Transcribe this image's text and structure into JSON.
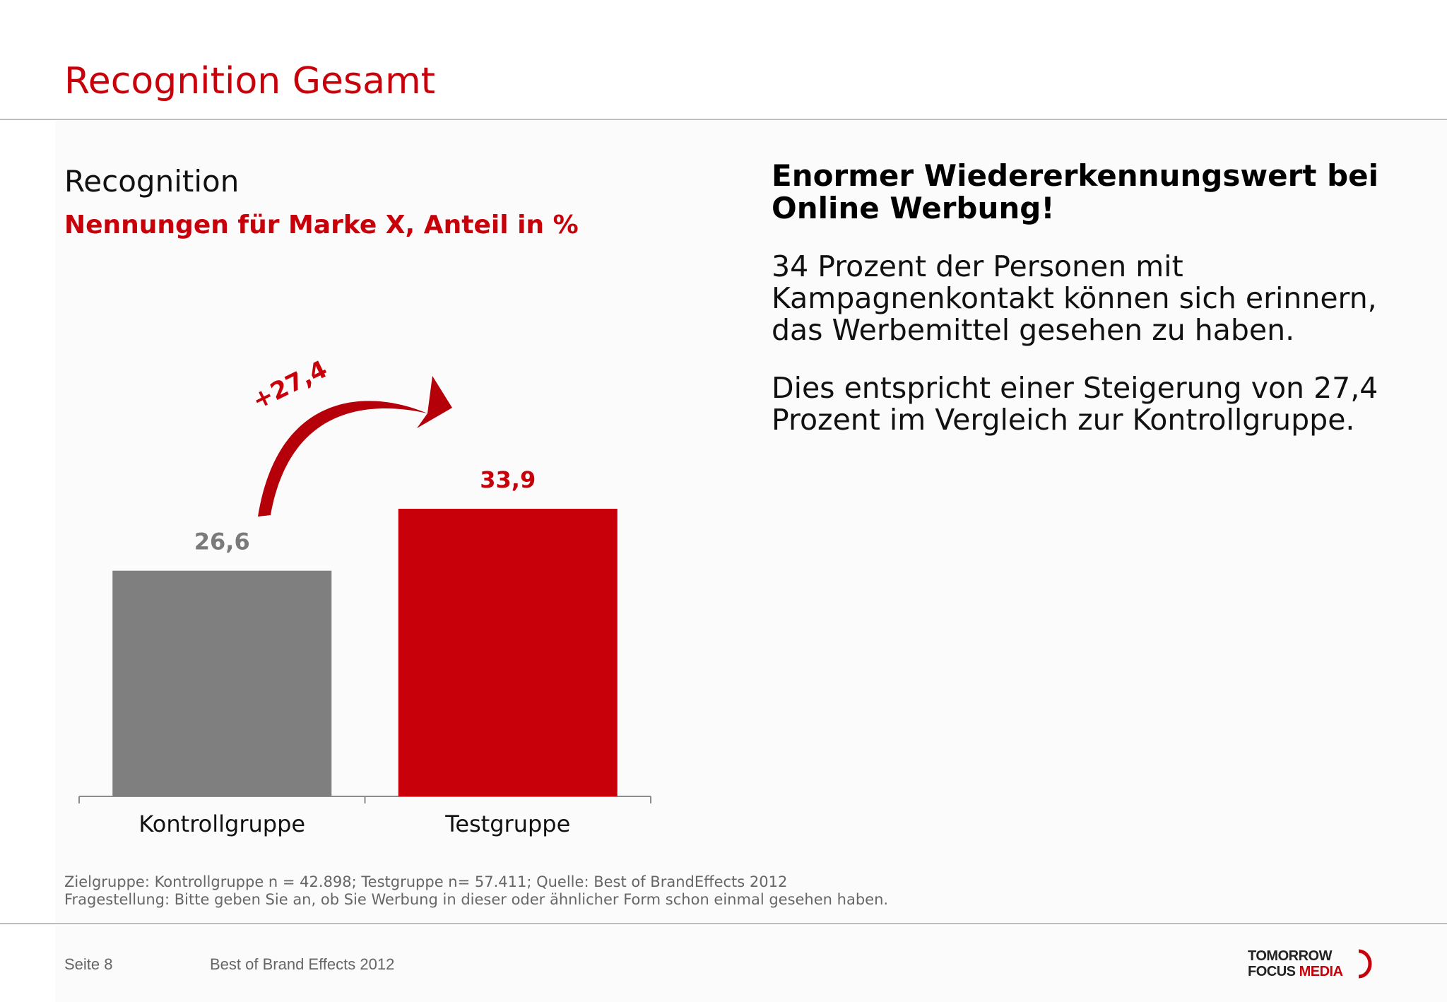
{
  "slide": {
    "title": "Recognition Gesamt",
    "page_label": "Seite 8",
    "event_label": "Best of Brand Effects 2012"
  },
  "chart_heading": "Recognition",
  "chart_subheading": "Nennungen für Marke X, Anteil in %",
  "chart_data": {
    "type": "bar",
    "title": "Recognition",
    "subtitle": "Nennungen für Marke X, Anteil in %",
    "categories": [
      "Kontrollgruppe",
      "Testgruppe"
    ],
    "values": [
      26.6,
      33.9
    ],
    "value_labels": [
      "26,6",
      "33,9"
    ],
    "colors": [
      "#807f80",
      "#c8000a"
    ],
    "annotation": "+27,4",
    "ylim": [
      0,
      38.9
    ],
    "grid": false,
    "legend": "none"
  },
  "right": {
    "headline": "Enormer Wiedererkennungswert bei Online Werbung!",
    "paragraph1": "34 Prozent der Personen mit Kampagnenkontakt können sich erinnern, das Werbemittel gesehen zu haben.",
    "paragraph2": "Dies entspricht einer Steigerung von 27,4 Prozent im Vergleich zur Kontrollgruppe."
  },
  "notes": {
    "line1": "Zielgruppe: Kontrollgruppe n = 42.898; Testgruppe n= 57.411; Quelle: Best of BrandEffects 2012",
    "line2": "Fragestellung: Bitte geben Sie an, ob Sie Werbung in dieser oder ähnlicher Form schon einmal gesehen haben."
  },
  "logo": {
    "line1": "TOMORROW",
    "line2a": "FOCUS",
    "line2b": "MEDIA"
  },
  "colors": {
    "brand_red": "#c8000a",
    "bar_grey": "#807f80"
  }
}
